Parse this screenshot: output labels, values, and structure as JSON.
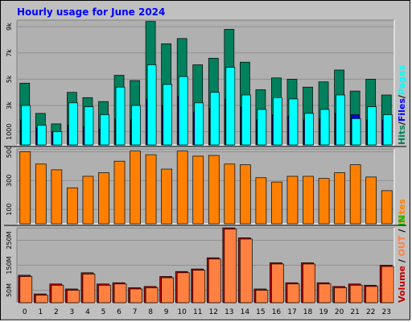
{
  "title": "Hourly usage for June 2024",
  "colors": {
    "background": "#c0c0c0",
    "panel": "#b0b0b0",
    "title": "#0000ff",
    "hits": "#00805c",
    "files": "#0000ff",
    "pages": "#00ffff",
    "sites": "#ff8000",
    "kbin": "#00c000",
    "kbout": "#ff8040",
    "volume": "#c00000",
    "separator": "#000000"
  },
  "side_labels": {
    "top": [
      {
        "text": "Hits",
        "color": "#00805c"
      },
      {
        "text": "/",
        "color": "#000000"
      },
      {
        "text": "Files",
        "color": "#0000ff"
      },
      {
        "text": "/",
        "color": "#000000"
      },
      {
        "text": "Pages",
        "color": "#00ffff"
      }
    ],
    "middle": [
      {
        "text": "Sites",
        "color": "#ff8000"
      }
    ],
    "bottom": [
      {
        "text": "Volume",
        "color": "#c00000"
      },
      {
        "text": " / ",
        "color": "#000000"
      },
      {
        "text": "OUT",
        "color": "#ff8040"
      },
      {
        "text": " / ",
        "color": "#000000"
      },
      {
        "text": "IN",
        "color": "#00c000"
      }
    ]
  },
  "chart_data": [
    {
      "type": "bar",
      "panel": "hits_files_pages",
      "categories": [
        "0",
        "1",
        "2",
        "3",
        "4",
        "5",
        "6",
        "7",
        "8",
        "9",
        "10",
        "11",
        "12",
        "13",
        "14",
        "15",
        "16",
        "17",
        "18",
        "19",
        "20",
        "21",
        "22",
        "23"
      ],
      "yticks": [
        "1000",
        "3k",
        "5k",
        "7k",
        "9k"
      ],
      "ytick_values": [
        1000,
        3000,
        5000,
        7000,
        9000
      ],
      "ylim": [
        0,
        9500
      ],
      "series": [
        {
          "name": "Hits",
          "values": [
            4700,
            2400,
            1600,
            4000,
            3600,
            3300,
            5300,
            4900,
            9400,
            7700,
            8100,
            6100,
            6600,
            8800,
            6300,
            4200,
            5100,
            5000,
            4400,
            4800,
            5700,
            4100,
            5000,
            3800
          ]
        },
        {
          "name": "Files",
          "values": [
            1900,
            1300,
            1000,
            1500,
            1400,
            1200,
            2000,
            1900,
            3500,
            3000,
            3700,
            2500,
            2800,
            3500,
            2900,
            1900,
            2300,
            2200,
            1900,
            2000,
            2400,
            2300,
            1900,
            1900
          ]
        },
        {
          "name": "Pages",
          "values": [
            3000,
            1500,
            1000,
            3200,
            2900,
            2300,
            4400,
            3000,
            6100,
            4600,
            5200,
            3200,
            4000,
            5900,
            3800,
            2700,
            3600,
            3500,
            2400,
            2700,
            3800,
            2000,
            2900,
            2300
          ]
        }
      ]
    },
    {
      "type": "bar",
      "panel": "sites",
      "categories": [
        "0",
        "1",
        "2",
        "3",
        "4",
        "5",
        "6",
        "7",
        "8",
        "9",
        "10",
        "11",
        "12",
        "13",
        "14",
        "15",
        "16",
        "17",
        "18",
        "19",
        "20",
        "21",
        "22",
        "23"
      ],
      "yticks": [
        "100",
        "300",
        "500"
      ],
      "ytick_values": [
        100,
        300,
        500
      ],
      "ylim": [
        0,
        520
      ],
      "series": [
        {
          "name": "Sites",
          "values": [
            500,
            415,
            375,
            250,
            330,
            355,
            435,
            505,
            480,
            380,
            505,
            470,
            475,
            415,
            410,
            320,
            290,
            330,
            330,
            315,
            355,
            410,
            325,
            230
          ]
        }
      ]
    },
    {
      "type": "bar",
      "panel": "volume",
      "categories": [
        "0",
        "1",
        "2",
        "3",
        "4",
        "5",
        "6",
        "7",
        "8",
        "9",
        "10",
        "11",
        "12",
        "13",
        "14",
        "15",
        "16",
        "17",
        "18",
        "19",
        "20",
        "21",
        "22",
        "23"
      ],
      "yticks": [
        "50M",
        "150M",
        "250M"
      ],
      "ytick_values": [
        50,
        150,
        250
      ],
      "ylim": [
        0,
        300
      ],
      "series": [
        {
          "name": "Volume",
          "values": [
            110,
            35,
            75,
            55,
            120,
            75,
            80,
            60,
            65,
            105,
            125,
            135,
            180,
            300,
            260,
            55,
            160,
            80,
            160,
            80,
            65,
            75,
            70,
            150
          ]
        },
        {
          "name": "OUT",
          "values": [
            105,
            30,
            70,
            50,
            115,
            70,
            75,
            55,
            60,
            100,
            120,
            130,
            175,
            295,
            255,
            50,
            155,
            75,
            155,
            75,
            60,
            70,
            65,
            145
          ]
        }
      ]
    }
  ]
}
